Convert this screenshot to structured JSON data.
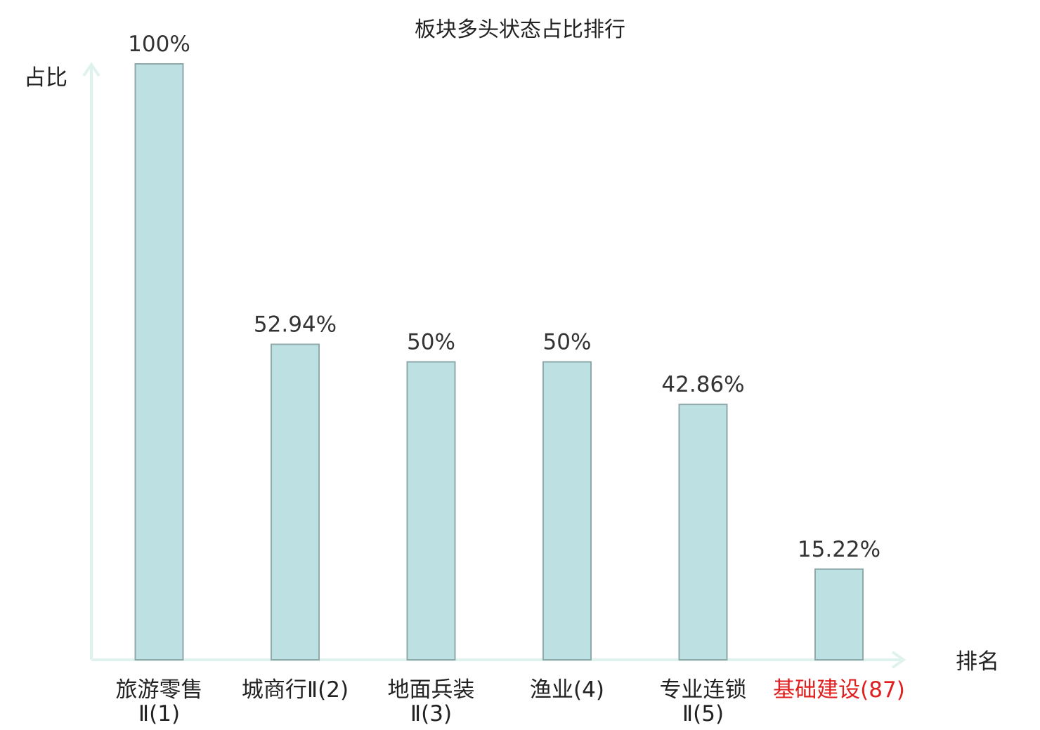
{
  "chart_data": {
    "type": "bar",
    "title": "板块多头状态占比排行",
    "ylabel": "占比",
    "xlabel": "排名",
    "ylim": [
      0,
      100
    ],
    "grid": false,
    "categories": [
      {
        "lines": [
          "旅游零售",
          "Ⅱ(1)"
        ],
        "highlight": false
      },
      {
        "lines": [
          "城商行Ⅱ(2)"
        ],
        "highlight": false
      },
      {
        "lines": [
          "地面兵装",
          "Ⅱ(3)"
        ],
        "highlight": false
      },
      {
        "lines": [
          "渔业(4)"
        ],
        "highlight": false
      },
      {
        "lines": [
          "专业连锁",
          "Ⅱ(5)"
        ],
        "highlight": false
      },
      {
        "lines": [
          "基础建设(87)"
        ],
        "highlight": true
      }
    ],
    "values": [
      100,
      52.94,
      50,
      50,
      42.86,
      15.22
    ],
    "value_labels": [
      "100%",
      "52.94%",
      "50%",
      "50%",
      "42.86%",
      "15.22%"
    ],
    "colors": {
      "bar_fill": "#bde0e2",
      "bar_stroke": "#8fa9ab",
      "axis": "#dff2ee",
      "highlight_text": "#e02020"
    }
  }
}
